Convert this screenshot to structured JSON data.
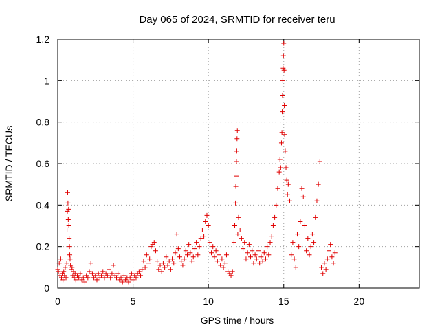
{
  "chart_data": {
    "type": "scatter",
    "title": "Day 065 of 2024, SRMTID for receiver teru",
    "xlabel": "GPS time / hours",
    "ylabel": "SRMTID / TECUs",
    "xlim": [
      0,
      24
    ],
    "ylim": [
      0,
      1.2
    ],
    "xticks": [
      0,
      5,
      10,
      15,
      20
    ],
    "yticks": [
      0,
      0.2,
      0.4,
      0.6,
      0.8,
      1,
      1.2
    ],
    "ytick_labels": [
      "0",
      "0.2",
      "0.4",
      "0.6",
      "0.8",
      "1",
      "1.2"
    ],
    "grid": true,
    "marker": "+",
    "color": "#e00000",
    "series": [
      {
        "name": "SRMTID",
        "points": [
          [
            0.0,
            0.09
          ],
          [
            0.05,
            0.08
          ],
          [
            0.1,
            0.12
          ],
          [
            0.15,
            0.06
          ],
          [
            0.2,
            0.14
          ],
          [
            0.25,
            0.05
          ],
          [
            0.3,
            0.07
          ],
          [
            0.35,
            0.04
          ],
          [
            0.4,
            0.08
          ],
          [
            0.45,
            0.06
          ],
          [
            0.5,
            0.1
          ],
          [
            0.55,
            0.05
          ],
          [
            0.6,
            0.12
          ],
          [
            0.62,
            0.28
          ],
          [
            0.64,
            0.37
          ],
          [
            0.66,
            0.46
          ],
          [
            0.68,
            0.41
          ],
          [
            0.7,
            0.33
          ],
          [
            0.72,
            0.38
          ],
          [
            0.74,
            0.3
          ],
          [
            0.76,
            0.24
          ],
          [
            0.78,
            0.2
          ],
          [
            0.8,
            0.16
          ],
          [
            0.82,
            0.14
          ],
          [
            0.85,
            0.11
          ],
          [
            0.9,
            0.09
          ],
          [
            0.95,
            0.1
          ],
          [
            1.0,
            0.06
          ],
          [
            1.05,
            0.08
          ],
          [
            1.1,
            0.05
          ],
          [
            1.15,
            0.07
          ],
          [
            1.2,
            0.04
          ],
          [
            1.3,
            0.06
          ],
          [
            1.4,
            0.05
          ],
          [
            1.5,
            0.07
          ],
          [
            1.6,
            0.04
          ],
          [
            1.7,
            0.05
          ],
          [
            1.8,
            0.03
          ],
          [
            1.9,
            0.06
          ],
          [
            2.0,
            0.05
          ],
          [
            2.1,
            0.08
          ],
          [
            2.2,
            0.12
          ],
          [
            2.3,
            0.07
          ],
          [
            2.4,
            0.05
          ],
          [
            2.5,
            0.06
          ],
          [
            2.6,
            0.04
          ],
          [
            2.7,
            0.07
          ],
          [
            2.8,
            0.05
          ],
          [
            2.9,
            0.06
          ],
          [
            3.0,
            0.08
          ],
          [
            3.1,
            0.05
          ],
          [
            3.2,
            0.07
          ],
          [
            3.3,
            0.06
          ],
          [
            3.4,
            0.09
          ],
          [
            3.5,
            0.05
          ],
          [
            3.6,
            0.07
          ],
          [
            3.7,
            0.11
          ],
          [
            3.8,
            0.06
          ],
          [
            3.9,
            0.05
          ],
          [
            4.0,
            0.07
          ],
          [
            4.1,
            0.04
          ],
          [
            4.2,
            0.05
          ],
          [
            4.3,
            0.03
          ],
          [
            4.4,
            0.06
          ],
          [
            4.5,
            0.04
          ],
          [
            4.6,
            0.05
          ],
          [
            4.7,
            0.03
          ],
          [
            4.8,
            0.05
          ],
          [
            4.9,
            0.07
          ],
          [
            5.0,
            0.04
          ],
          [
            5.1,
            0.06
          ],
          [
            5.2,
            0.05
          ],
          [
            5.3,
            0.07
          ],
          [
            5.4,
            0.08
          ],
          [
            5.5,
            0.06
          ],
          [
            5.6,
            0.09
          ],
          [
            5.7,
            0.13
          ],
          [
            5.8,
            0.1
          ],
          [
            5.9,
            0.16
          ],
          [
            6.0,
            0.12
          ],
          [
            6.1,
            0.14
          ],
          [
            6.2,
            0.2
          ],
          [
            6.3,
            0.21
          ],
          [
            6.4,
            0.22
          ],
          [
            6.5,
            0.18
          ],
          [
            6.6,
            0.13
          ],
          [
            6.7,
            0.09
          ],
          [
            6.8,
            0.11
          ],
          [
            6.9,
            0.08
          ],
          [
            7.0,
            0.12
          ],
          [
            7.1,
            0.1
          ],
          [
            7.2,
            0.15
          ],
          [
            7.3,
            0.11
          ],
          [
            7.4,
            0.13
          ],
          [
            7.5,
            0.09
          ],
          [
            7.6,
            0.14
          ],
          [
            7.7,
            0.12
          ],
          [
            7.8,
            0.17
          ],
          [
            7.9,
            0.26
          ],
          [
            8.0,
            0.19
          ],
          [
            8.1,
            0.15
          ],
          [
            8.2,
            0.13
          ],
          [
            8.3,
            0.11
          ],
          [
            8.4,
            0.14
          ],
          [
            8.5,
            0.18
          ],
          [
            8.6,
            0.16
          ],
          [
            8.7,
            0.21
          ],
          [
            8.8,
            0.17
          ],
          [
            8.9,
            0.13
          ],
          [
            9.0,
            0.15
          ],
          [
            9.1,
            0.19
          ],
          [
            9.2,
            0.22
          ],
          [
            9.3,
            0.16
          ],
          [
            9.4,
            0.2
          ],
          [
            9.5,
            0.24
          ],
          [
            9.6,
            0.28
          ],
          [
            9.7,
            0.25
          ],
          [
            9.8,
            0.32
          ],
          [
            9.9,
            0.35
          ],
          [
            10.0,
            0.3
          ],
          [
            10.1,
            0.22
          ],
          [
            10.2,
            0.17
          ],
          [
            10.3,
            0.2
          ],
          [
            10.4,
            0.15
          ],
          [
            10.5,
            0.18
          ],
          [
            10.6,
            0.13
          ],
          [
            10.7,
            0.16
          ],
          [
            10.8,
            0.11
          ],
          [
            10.9,
            0.14
          ],
          [
            11.0,
            0.1
          ],
          [
            11.1,
            0.12
          ],
          [
            11.2,
            0.16
          ],
          [
            11.3,
            0.08
          ],
          [
            11.4,
            0.07
          ],
          [
            11.5,
            0.06
          ],
          [
            11.6,
            0.08
          ],
          [
            11.7,
            0.22
          ],
          [
            11.75,
            0.3
          ],
          [
            11.8,
            0.41
          ],
          [
            11.82,
            0.49
          ],
          [
            11.84,
            0.54
          ],
          [
            11.86,
            0.61
          ],
          [
            11.88,
            0.66
          ],
          [
            11.9,
            0.72
          ],
          [
            11.92,
            0.76
          ],
          [
            11.95,
            0.26
          ],
          [
            12.0,
            0.34
          ],
          [
            12.1,
            0.28
          ],
          [
            12.2,
            0.24
          ],
          [
            12.3,
            0.19
          ],
          [
            12.4,
            0.22
          ],
          [
            12.5,
            0.14
          ],
          [
            12.6,
            0.17
          ],
          [
            12.7,
            0.21
          ],
          [
            12.8,
            0.15
          ],
          [
            12.9,
            0.18
          ],
          [
            13.0,
            0.12
          ],
          [
            13.1,
            0.16
          ],
          [
            13.2,
            0.14
          ],
          [
            13.3,
            0.18
          ],
          [
            13.4,
            0.12
          ],
          [
            13.5,
            0.15
          ],
          [
            13.6,
            0.13
          ],
          [
            13.7,
            0.17
          ],
          [
            13.8,
            0.14
          ],
          [
            13.9,
            0.2
          ],
          [
            14.0,
            0.16
          ],
          [
            14.1,
            0.22
          ],
          [
            14.2,
            0.25
          ],
          [
            14.3,
            0.3
          ],
          [
            14.4,
            0.34
          ],
          [
            14.5,
            0.4
          ],
          [
            14.6,
            0.48
          ],
          [
            14.7,
            0.56
          ],
          [
            14.75,
            0.62
          ],
          [
            14.8,
            0.58
          ],
          [
            14.85,
            0.7
          ],
          [
            14.88,
            0.75
          ],
          [
            14.9,
            0.85
          ],
          [
            14.92,
            0.93
          ],
          [
            14.94,
            1.0
          ],
          [
            14.96,
            1.06
          ],
          [
            14.98,
            1.12
          ],
          [
            15.0,
            1.18
          ],
          [
            15.02,
            1.05
          ],
          [
            15.04,
            0.88
          ],
          [
            15.06,
            0.74
          ],
          [
            15.1,
            0.66
          ],
          [
            15.15,
            0.58
          ],
          [
            15.2,
            0.52
          ],
          [
            15.25,
            0.45
          ],
          [
            15.3,
            0.5
          ],
          [
            15.4,
            0.42
          ],
          [
            15.5,
            0.16
          ],
          [
            15.6,
            0.22
          ],
          [
            15.7,
            0.14
          ],
          [
            15.8,
            0.1
          ],
          [
            15.9,
            0.26
          ],
          [
            16.0,
            0.2
          ],
          [
            16.1,
            0.32
          ],
          [
            16.2,
            0.48
          ],
          [
            16.3,
            0.44
          ],
          [
            16.4,
            0.3
          ],
          [
            16.5,
            0.18
          ],
          [
            16.6,
            0.24
          ],
          [
            16.7,
            0.16
          ],
          [
            16.8,
            0.2
          ],
          [
            16.9,
            0.26
          ],
          [
            17.0,
            0.22
          ],
          [
            17.1,
            0.34
          ],
          [
            17.2,
            0.42
          ],
          [
            17.3,
            0.5
          ],
          [
            17.4,
            0.61
          ],
          [
            17.5,
            0.1
          ],
          [
            17.6,
            0.07
          ],
          [
            17.7,
            0.12
          ],
          [
            17.8,
            0.09
          ],
          [
            17.9,
            0.14
          ],
          [
            18.0,
            0.18
          ],
          [
            18.1,
            0.21
          ],
          [
            18.2,
            0.15
          ],
          [
            18.3,
            0.12
          ],
          [
            18.4,
            0.17
          ]
        ]
      }
    ]
  }
}
